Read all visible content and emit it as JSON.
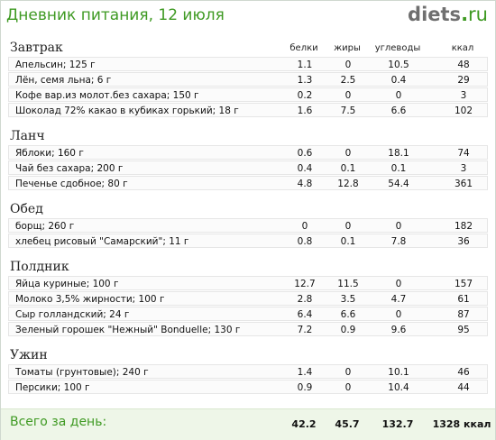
{
  "header": {
    "title": "Дневник питания, 12 июля",
    "logo": {
      "name": "diets",
      "dot": ".",
      "tld": "ru"
    }
  },
  "columns": {
    "protein": "белки",
    "fat": "жиры",
    "carbs": "углеводы",
    "kcal": "ккал"
  },
  "meals": [
    {
      "name": "Завтрак",
      "items": [
        {
          "name": "Апельсин; 125 г",
          "protein": "1.1",
          "fat": "0",
          "carbs": "10.5",
          "kcal": "48"
        },
        {
          "name": "Лён, семя льна; 6 г",
          "protein": "1.3",
          "fat": "2.5",
          "carbs": "0.4",
          "kcal": "29"
        },
        {
          "name": "Кофе вар.из молот.без сахара; 150 г",
          "protein": "0.2",
          "fat": "0",
          "carbs": "0",
          "kcal": "3"
        },
        {
          "name": "Шоколад 72% какао в кубиках горький; 18 г",
          "protein": "1.6",
          "fat": "7.5",
          "carbs": "6.6",
          "kcal": "102"
        }
      ]
    },
    {
      "name": "Ланч",
      "items": [
        {
          "name": "Яблоки; 160 г",
          "protein": "0.6",
          "fat": "0",
          "carbs": "18.1",
          "kcal": "74"
        },
        {
          "name": "Чай без сахара; 200 г",
          "protein": "0.4",
          "fat": "0.1",
          "carbs": "0.1",
          "kcal": "3"
        },
        {
          "name": "Печенье сдобное; 80 г",
          "protein": "4.8",
          "fat": "12.8",
          "carbs": "54.4",
          "kcal": "361"
        }
      ]
    },
    {
      "name": "Обед",
      "items": [
        {
          "name": "борщ; 260 г",
          "protein": "0",
          "fat": "0",
          "carbs": "0",
          "kcal": "182"
        },
        {
          "name": "хлебец рисовый \"Самарский\"; 11 г",
          "protein": "0.8",
          "fat": "0.1",
          "carbs": "7.8",
          "kcal": "36"
        }
      ]
    },
    {
      "name": "Полдник",
      "items": [
        {
          "name": "Яйца куриные; 100 г",
          "protein": "12.7",
          "fat": "11.5",
          "carbs": "0",
          "kcal": "157"
        },
        {
          "name": "Молоко 3,5% жирности; 100 г",
          "protein": "2.8",
          "fat": "3.5",
          "carbs": "4.7",
          "kcal": "61"
        },
        {
          "name": "Сыр голландский; 24 г",
          "protein": "6.4",
          "fat": "6.6",
          "carbs": "0",
          "kcal": "87"
        },
        {
          "name": "Зеленый горошек \"Нежный\" Bonduelle; 130 г",
          "protein": "7.2",
          "fat": "0.9",
          "carbs": "9.6",
          "kcal": "95"
        }
      ]
    },
    {
      "name": "Ужин",
      "items": [
        {
          "name": "Томаты (грунтовые); 240 г",
          "protein": "1.4",
          "fat": "0",
          "carbs": "10.1",
          "kcal": "46"
        },
        {
          "name": "Персики; 100 г",
          "protein": "0.9",
          "fat": "0",
          "carbs": "10.4",
          "kcal": "44"
        }
      ]
    }
  ],
  "total": {
    "label": "Всего за день:",
    "protein": "42.2",
    "fat": "45.7",
    "carbs": "132.7",
    "kcal": "1328 ккал"
  },
  "colors": {
    "accent": "#3f9a23",
    "total_bg": "#eef6e8",
    "row_border": "#e6e6e6"
  }
}
